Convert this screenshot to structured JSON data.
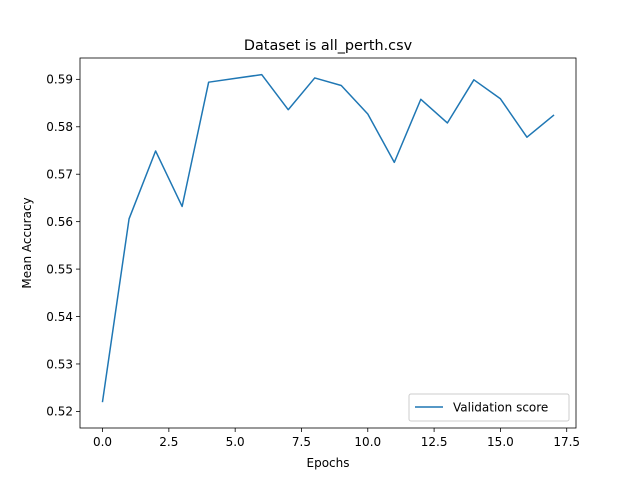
{
  "chart_data": {
    "type": "line",
    "title": "Dataset is all_perth.csv",
    "xlabel": "Epochs",
    "ylabel": "Mean Accuracy",
    "xlim": [
      -0.85,
      17.85
    ],
    "ylim": [
      0.5165,
      0.5945
    ],
    "xticks": [
      0.0,
      2.5,
      5.0,
      7.5,
      10.0,
      12.5,
      15.0,
      17.5
    ],
    "xtick_labels": [
      "0.0",
      "2.5",
      "5.0",
      "7.5",
      "10.0",
      "12.5",
      "15.0",
      "17.5"
    ],
    "yticks": [
      0.52,
      0.53,
      0.54,
      0.55,
      0.56,
      0.57,
      0.58,
      0.59
    ],
    "ytick_labels": [
      "0.52",
      "0.53",
      "0.54",
      "0.55",
      "0.56",
      "0.57",
      "0.58",
      "0.59"
    ],
    "grid": false,
    "legend_position": "lower right",
    "series": [
      {
        "name": "Validation score",
        "color": "#1f77b4",
        "x": [
          0,
          1,
          2,
          3,
          4,
          5,
          6,
          7,
          8,
          9,
          10,
          11,
          12,
          13,
          14,
          15,
          16,
          17
        ],
        "y": [
          0.5221,
          0.5606,
          0.5749,
          0.5632,
          0.5894,
          0.5902,
          0.591,
          0.5836,
          0.5903,
          0.5887,
          0.5827,
          0.5725,
          0.5858,
          0.5808,
          0.5899,
          0.5859,
          0.5778,
          0.5824
        ]
      }
    ]
  }
}
